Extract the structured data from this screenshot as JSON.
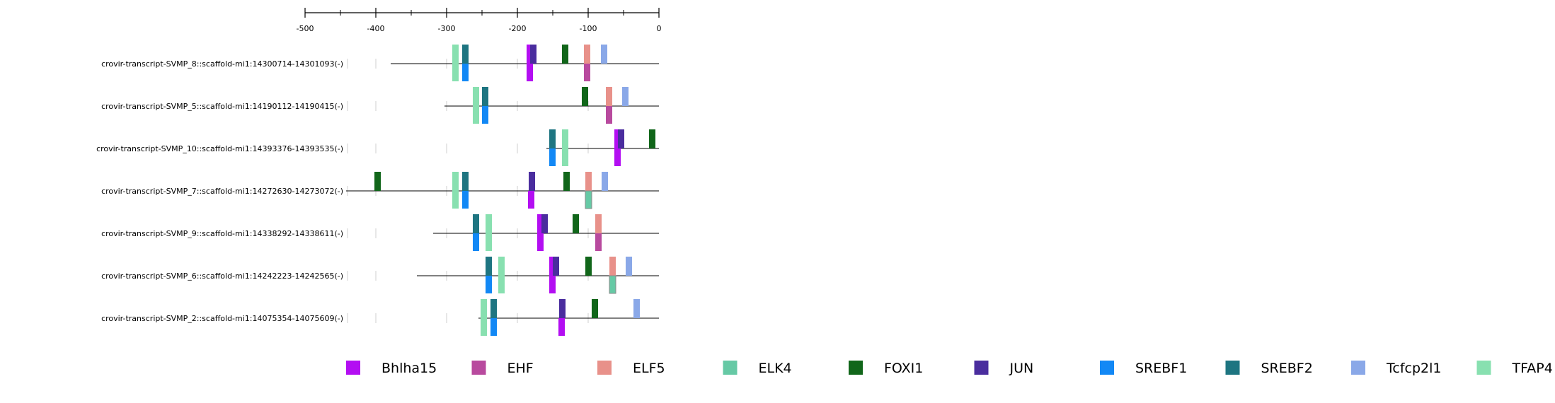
{
  "chart_data": {
    "type": "motif-map",
    "axis": {
      "ticks": [
        -500,
        -400,
        -300,
        -200,
        -100,
        0
      ],
      "range": [
        -500,
        0
      ],
      "position": "top"
    },
    "legend": {
      "placement": "bottom",
      "entries": [
        {
          "name": "Bhlha15",
          "color": "#b30ef2"
        },
        {
          "name": "EHF",
          "color": "#b84a9e"
        },
        {
          "name": "ELF5",
          "color": "#e8918a"
        },
        {
          "name": "ELK4",
          "color": "#66c9a5"
        },
        {
          "name": "FOXI1",
          "color": "#11661a"
        },
        {
          "name": "JUN",
          "color": "#4a2d9e"
        },
        {
          "name": "SREBF1",
          "color": "#1288f5"
        },
        {
          "name": "SREBF2",
          "color": "#1e7581"
        },
        {
          "name": "Tcfcp2l1",
          "color": "#8aa8e8"
        },
        {
          "name": "TFAP4",
          "color": "#88e0b0"
        }
      ]
    },
    "sequences": [
      {
        "label": "crovir-transcript-SVMP_8::scaffold-mi1:14300714-14301093(-)",
        "start": -379,
        "motifs": [
          {
            "tf": "TFAP4",
            "pos": -292,
            "strand": "both"
          },
          {
            "tf": "SREBF2",
            "pos": -278,
            "strand": "+"
          },
          {
            "tf": "SREBF1",
            "pos": -278,
            "strand": "-"
          },
          {
            "tf": "Bhlha15",
            "pos": -187,
            "strand": "both"
          },
          {
            "tf": "JUN",
            "pos": -182,
            "strand": "+"
          },
          {
            "tf": "FOXI1",
            "pos": -137,
            "strand": "+"
          },
          {
            "tf": "ELF5",
            "pos": -106,
            "strand": "+"
          },
          {
            "tf": "EHF",
            "pos": -106,
            "strand": "-"
          },
          {
            "tf": "Tcfcp2l1",
            "pos": -82,
            "strand": "+"
          }
        ]
      },
      {
        "label": "crovir-transcript-SVMP_5::scaffold-mi1:14190112-14190415(-)",
        "start": -303,
        "motifs": [
          {
            "tf": "TFAP4",
            "pos": -263,
            "strand": "both"
          },
          {
            "tf": "SREBF2",
            "pos": -250,
            "strand": "+"
          },
          {
            "tf": "SREBF1",
            "pos": -250,
            "strand": "-"
          },
          {
            "tf": "FOXI1",
            "pos": -109,
            "strand": "+"
          },
          {
            "tf": "ELF5",
            "pos": -75,
            "strand": "+"
          },
          {
            "tf": "EHF",
            "pos": -75,
            "strand": "-"
          },
          {
            "tf": "Tcfcp2l1",
            "pos": -52,
            "strand": "+"
          }
        ]
      },
      {
        "label": "crovir-transcript-SVMP_10::scaffold-mi1:14393376-14393535(-)",
        "start": -159,
        "motifs": [
          {
            "tf": "SREBF2",
            "pos": -155,
            "strand": "+"
          },
          {
            "tf": "SREBF1",
            "pos": -155,
            "strand": "-"
          },
          {
            "tf": "TFAP4",
            "pos": -137,
            "strand": "both"
          },
          {
            "tf": "Bhlha15",
            "pos": -63,
            "strand": "both"
          },
          {
            "tf": "JUN",
            "pos": -58,
            "strand": "+"
          },
          {
            "tf": "FOXI1",
            "pos": -14,
            "strand": "+"
          }
        ]
      },
      {
        "label": "crovir-transcript-SVMP_7::scaffold-mi1:14272630-14273072(-)",
        "start": -442,
        "motifs": [
          {
            "tf": "FOXI1",
            "pos": -402,
            "strand": "+"
          },
          {
            "tf": "TFAP4",
            "pos": -292,
            "strand": "both"
          },
          {
            "tf": "SREBF2",
            "pos": -278,
            "strand": "+"
          },
          {
            "tf": "SREBF1",
            "pos": -278,
            "strand": "-"
          },
          {
            "tf": "JUN",
            "pos": -184,
            "strand": "+"
          },
          {
            "tf": "Bhlha15",
            "pos": -185,
            "strand": "-"
          },
          {
            "tf": "FOXI1",
            "pos": -135,
            "strand": "+"
          },
          {
            "tf": "ELF5",
            "pos": -104,
            "strand": "+"
          },
          {
            "tf": "ELK4",
            "pos": -104,
            "strand": "-"
          },
          {
            "tf": "Tcfcp2l1",
            "pos": -81,
            "strand": "+"
          }
        ]
      },
      {
        "label": "crovir-transcript-SVMP_9::scaffold-mi1:14338292-14338611(-)",
        "start": -319,
        "motifs": [
          {
            "tf": "SREBF2",
            "pos": -263,
            "strand": "+"
          },
          {
            "tf": "SREBF1",
            "pos": -263,
            "strand": "-"
          },
          {
            "tf": "TFAP4",
            "pos": -245,
            "strand": "both"
          },
          {
            "tf": "Bhlha15",
            "pos": -172,
            "strand": "both"
          },
          {
            "tf": "JUN",
            "pos": -166,
            "strand": "+"
          },
          {
            "tf": "FOXI1",
            "pos": -122,
            "strand": "+"
          },
          {
            "tf": "ELF5",
            "pos": -90,
            "strand": "+"
          },
          {
            "tf": "EHF",
            "pos": -90,
            "strand": "-"
          }
        ]
      },
      {
        "label": "crovir-transcript-SVMP_6::scaffold-mi1:14242223-14242565(-)",
        "start": -342,
        "motifs": [
          {
            "tf": "SREBF2",
            "pos": -245,
            "strand": "+"
          },
          {
            "tf": "SREBF1",
            "pos": -245,
            "strand": "-"
          },
          {
            "tf": "TFAP4",
            "pos": -227,
            "strand": "both"
          },
          {
            "tf": "Bhlha15",
            "pos": -155,
            "strand": "both"
          },
          {
            "tf": "JUN",
            "pos": -150,
            "strand": "+"
          },
          {
            "tf": "FOXI1",
            "pos": -104,
            "strand": "+"
          },
          {
            "tf": "ELF5",
            "pos": -70,
            "strand": "+"
          },
          {
            "tf": "ELK4",
            "pos": -70,
            "strand": "-"
          },
          {
            "tf": "Tcfcp2l1",
            "pos": -47,
            "strand": "+"
          }
        ]
      },
      {
        "label": "crovir-transcript-SVMP_2::scaffold-mi1:14075354-14075609(-)",
        "start": -255,
        "motifs": [
          {
            "tf": "TFAP4",
            "pos": -252,
            "strand": "both"
          },
          {
            "tf": "SREBF2",
            "pos": -238,
            "strand": "+"
          },
          {
            "tf": "SREBF1",
            "pos": -238,
            "strand": "-"
          },
          {
            "tf": "JUN",
            "pos": -141,
            "strand": "+"
          },
          {
            "tf": "Bhlha15",
            "pos": -142,
            "strand": "-"
          },
          {
            "tf": "FOXI1",
            "pos": -95,
            "strand": "+"
          },
          {
            "tf": "Tcfcp2l1",
            "pos": -36,
            "strand": "+"
          }
        ]
      }
    ]
  }
}
